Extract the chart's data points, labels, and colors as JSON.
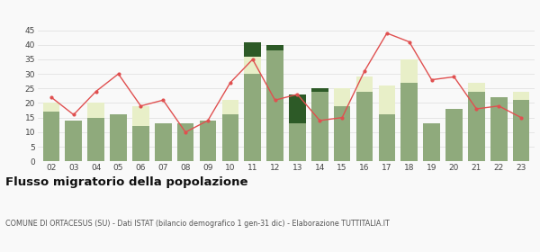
{
  "years": [
    "02",
    "03",
    "04",
    "05",
    "06",
    "07",
    "08",
    "09",
    "10",
    "11",
    "12",
    "13",
    "14",
    "15",
    "16",
    "17",
    "18",
    "19",
    "20",
    "21",
    "22",
    "23"
  ],
  "iscritti_comuni": [
    17,
    14,
    15,
    16,
    12,
    13,
    13,
    14,
    16,
    30,
    38,
    13,
    24,
    19,
    24,
    16,
    27,
    13,
    18,
    24,
    22,
    21
  ],
  "iscritti_estero": [
    3,
    0,
    5,
    0,
    7,
    0,
    0,
    0,
    5,
    6,
    0,
    0,
    0,
    6,
    5,
    10,
    8,
    0,
    0,
    3,
    0,
    3
  ],
  "iscritti_altri": [
    0,
    0,
    0,
    0,
    0,
    0,
    0,
    0,
    0,
    5,
    2,
    10,
    1,
    0,
    0,
    0,
    0,
    0,
    0,
    0,
    0,
    0
  ],
  "cancellati": [
    22,
    16,
    24,
    30,
    19,
    21,
    10,
    14,
    27,
    35,
    21,
    23,
    14,
    15,
    31,
    44,
    41,
    28,
    29,
    18,
    19,
    15
  ],
  "color_comuni": "#8faa7c",
  "color_estero": "#e8efc8",
  "color_altri": "#2d5a27",
  "color_cancellati": "#e05050",
  "ylim": [
    0,
    45
  ],
  "yticks": [
    0,
    5,
    10,
    15,
    20,
    25,
    30,
    35,
    40,
    45
  ],
  "title": "Flusso migratorio della popolazione",
  "subtitle": "COMUNE DI ORTACESUS (SU) - Dati ISTAT (bilancio demografico 1 gen-31 dic) - Elaborazione TUTTITALIA.IT",
  "bg_color": "#f9f9f9",
  "grid_color": "#dddddd"
}
